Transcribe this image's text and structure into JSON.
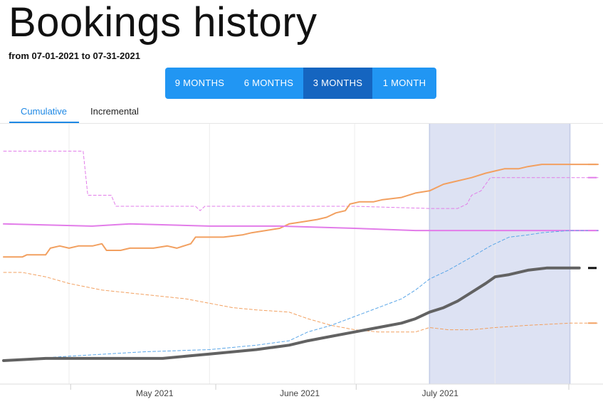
{
  "header": {
    "title": "Bookings history",
    "subtitle": "from 07-01-2021 to 07-31-2021"
  },
  "range_buttons": [
    {
      "label": "9 MONTHS",
      "active": false
    },
    {
      "label": "6 MONTHS",
      "active": false
    },
    {
      "label": "3 MONTHS",
      "active": true
    },
    {
      "label": "1 MONTH",
      "active": false
    }
  ],
  "tabs": [
    {
      "label": "Cumulative",
      "active": true
    },
    {
      "label": "Incremental",
      "active": false
    }
  ],
  "colors": {
    "accent": "#2196f3",
    "accent_active": "#1565c0",
    "orange": "#f2a060",
    "magenta": "#e27ce9",
    "blue": "#5aa6e8",
    "gray": "#626262",
    "highlight": "#dde2f3"
  },
  "chart_data": {
    "type": "line",
    "x_range": [
      "2021-04-01",
      "2021-08-06"
    ],
    "x_ticks": [
      {
        "date": "2021-05-01",
        "label": "May 2021"
      },
      {
        "date": "2021-06-01",
        "label": "June 2021"
      },
      {
        "date": "2021-07-01",
        "label": "July 2021"
      }
    ],
    "highlight_range": [
      "2021-07-01",
      "2021-07-31"
    ],
    "grid": "vertical",
    "y_range": [
      0,
      100
    ],
    "series": [
      {
        "color": "magenta",
        "style": "dashed",
        "width": 1,
        "points": [
          [
            "2021-04-01",
            95
          ],
          [
            "2021-04-18",
            95
          ],
          [
            "2021-04-19",
            75
          ],
          [
            "2021-04-24",
            75
          ],
          [
            "2021-04-25",
            70
          ],
          [
            "2021-05-12",
            70
          ],
          [
            "2021-05-13",
            68
          ],
          [
            "2021-05-14",
            70
          ],
          [
            "2021-06-15",
            70
          ],
          [
            "2021-07-01",
            69
          ],
          [
            "2021-07-07",
            69
          ],
          [
            "2021-07-09",
            71
          ],
          [
            "2021-07-10",
            75
          ],
          [
            "2021-07-12",
            77
          ],
          [
            "2021-07-14",
            83
          ],
          [
            "2021-07-31",
            83
          ],
          [
            "2021-08-06",
            83
          ]
        ]
      },
      {
        "color": "orange",
        "style": "solid",
        "width": 2,
        "points": [
          [
            "2021-04-01",
            47
          ],
          [
            "2021-04-05",
            47
          ],
          [
            "2021-04-06",
            48
          ],
          [
            "2021-04-10",
            48
          ],
          [
            "2021-04-11",
            51
          ],
          [
            "2021-04-13",
            52
          ],
          [
            "2021-04-15",
            51
          ],
          [
            "2021-04-17",
            52
          ],
          [
            "2021-04-20",
            52
          ],
          [
            "2021-04-22",
            53
          ],
          [
            "2021-04-23",
            50
          ],
          [
            "2021-04-26",
            50
          ],
          [
            "2021-04-28",
            51
          ],
          [
            "2021-05-03",
            51
          ],
          [
            "2021-05-06",
            52
          ],
          [
            "2021-05-08",
            51
          ],
          [
            "2021-05-11",
            53
          ],
          [
            "2021-05-12",
            56
          ],
          [
            "2021-05-18",
            56
          ],
          [
            "2021-05-22",
            57
          ],
          [
            "2021-05-24",
            58
          ],
          [
            "2021-05-27",
            59
          ],
          [
            "2021-05-30",
            60
          ],
          [
            "2021-06-01",
            62
          ],
          [
            "2021-06-04",
            63
          ],
          [
            "2021-06-07",
            64
          ],
          [
            "2021-06-09",
            65
          ],
          [
            "2021-06-11",
            67
          ],
          [
            "2021-06-13",
            68
          ],
          [
            "2021-06-14",
            71
          ],
          [
            "2021-06-16",
            72
          ],
          [
            "2021-06-19",
            72
          ],
          [
            "2021-06-21",
            73
          ],
          [
            "2021-06-25",
            74
          ],
          [
            "2021-06-28",
            76
          ],
          [
            "2021-07-01",
            77
          ],
          [
            "2021-07-04",
            80
          ],
          [
            "2021-07-06",
            81
          ],
          [
            "2021-07-08",
            82
          ],
          [
            "2021-07-10",
            83
          ],
          [
            "2021-07-13",
            85
          ],
          [
            "2021-07-15",
            86
          ],
          [
            "2021-07-17",
            87
          ],
          [
            "2021-07-20",
            87
          ],
          [
            "2021-07-22",
            88
          ],
          [
            "2021-07-25",
            89
          ],
          [
            "2021-07-31",
            89
          ],
          [
            "2021-08-06",
            89
          ]
        ]
      },
      {
        "color": "magenta",
        "style": "solid",
        "width": 2,
        "points": [
          [
            "2021-04-01",
            62
          ],
          [
            "2021-04-20",
            61
          ],
          [
            "2021-04-28",
            62
          ],
          [
            "2021-05-15",
            61
          ],
          [
            "2021-05-30",
            61
          ],
          [
            "2021-06-15",
            60
          ],
          [
            "2021-06-28",
            59
          ],
          [
            "2021-07-01",
            59
          ],
          [
            "2021-07-15",
            59
          ],
          [
            "2021-07-31",
            59
          ],
          [
            "2021-08-06",
            59
          ]
        ]
      },
      {
        "color": "orange",
        "style": "dashed",
        "width": 1,
        "points": [
          [
            "2021-04-01",
            40
          ],
          [
            "2021-04-05",
            40
          ],
          [
            "2021-04-10",
            38
          ],
          [
            "2021-04-15",
            35
          ],
          [
            "2021-04-22",
            32
          ],
          [
            "2021-05-01",
            30
          ],
          [
            "2021-05-10",
            28
          ],
          [
            "2021-05-15",
            26
          ],
          [
            "2021-05-20",
            24
          ],
          [
            "2021-05-25",
            23
          ],
          [
            "2021-06-01",
            22
          ],
          [
            "2021-06-05",
            19
          ],
          [
            "2021-06-10",
            16
          ],
          [
            "2021-06-15",
            14
          ],
          [
            "2021-06-20",
            13
          ],
          [
            "2021-06-28",
            13
          ],
          [
            "2021-07-01",
            15
          ],
          [
            "2021-07-05",
            14
          ],
          [
            "2021-07-10",
            14
          ],
          [
            "2021-07-15",
            15
          ],
          [
            "2021-07-22",
            16
          ],
          [
            "2021-07-31",
            17
          ],
          [
            "2021-08-06",
            17
          ]
        ]
      },
      {
        "color": "blue",
        "style": "dashed",
        "width": 1,
        "points": [
          [
            "2021-04-01",
            0
          ],
          [
            "2021-04-15",
            2
          ],
          [
            "2021-05-01",
            4
          ],
          [
            "2021-05-15",
            5
          ],
          [
            "2021-05-25",
            7
          ],
          [
            "2021-06-01",
            9
          ],
          [
            "2021-06-05",
            13
          ],
          [
            "2021-06-10",
            16
          ],
          [
            "2021-06-15",
            20
          ],
          [
            "2021-06-20",
            24
          ],
          [
            "2021-06-25",
            28
          ],
          [
            "2021-06-28",
            32
          ],
          [
            "2021-07-01",
            37
          ],
          [
            "2021-07-05",
            41
          ],
          [
            "2021-07-10",
            47
          ],
          [
            "2021-07-14",
            52
          ],
          [
            "2021-07-18",
            56
          ],
          [
            "2021-07-22",
            57
          ],
          [
            "2021-07-25",
            58
          ],
          [
            "2021-07-31",
            59
          ],
          [
            "2021-08-06",
            59
          ]
        ]
      },
      {
        "color": "gray",
        "style": "solid",
        "width": 4,
        "points": [
          [
            "2021-04-01",
            0
          ],
          [
            "2021-04-10",
            1
          ],
          [
            "2021-04-20",
            1
          ],
          [
            "2021-04-28",
            1
          ],
          [
            "2021-05-05",
            1
          ],
          [
            "2021-05-10",
            2
          ],
          [
            "2021-05-15",
            3
          ],
          [
            "2021-05-20",
            4
          ],
          [
            "2021-05-25",
            5
          ],
          [
            "2021-06-01",
            7
          ],
          [
            "2021-06-05",
            9
          ],
          [
            "2021-06-10",
            11
          ],
          [
            "2021-06-15",
            13
          ],
          [
            "2021-06-20",
            15
          ],
          [
            "2021-06-25",
            17
          ],
          [
            "2021-06-28",
            19
          ],
          [
            "2021-07-01",
            22
          ],
          [
            "2021-07-04",
            24
          ],
          [
            "2021-07-07",
            27
          ],
          [
            "2021-07-10",
            31
          ],
          [
            "2021-07-13",
            35
          ],
          [
            "2021-07-15",
            38
          ],
          [
            "2021-07-18",
            39
          ],
          [
            "2021-07-22",
            41
          ],
          [
            "2021-07-26",
            42
          ],
          [
            "2021-07-31",
            42
          ],
          [
            "2021-08-02",
            42
          ]
        ]
      }
    ],
    "end_markers": [
      {
        "color": "orange",
        "value": 89
      },
      {
        "color": "magenta",
        "value": 83
      },
      {
        "color": "magenta",
        "value": 59
      },
      {
        "color": "gray",
        "value": 42
      },
      {
        "color": "orange",
        "value": 17
      }
    ]
  }
}
